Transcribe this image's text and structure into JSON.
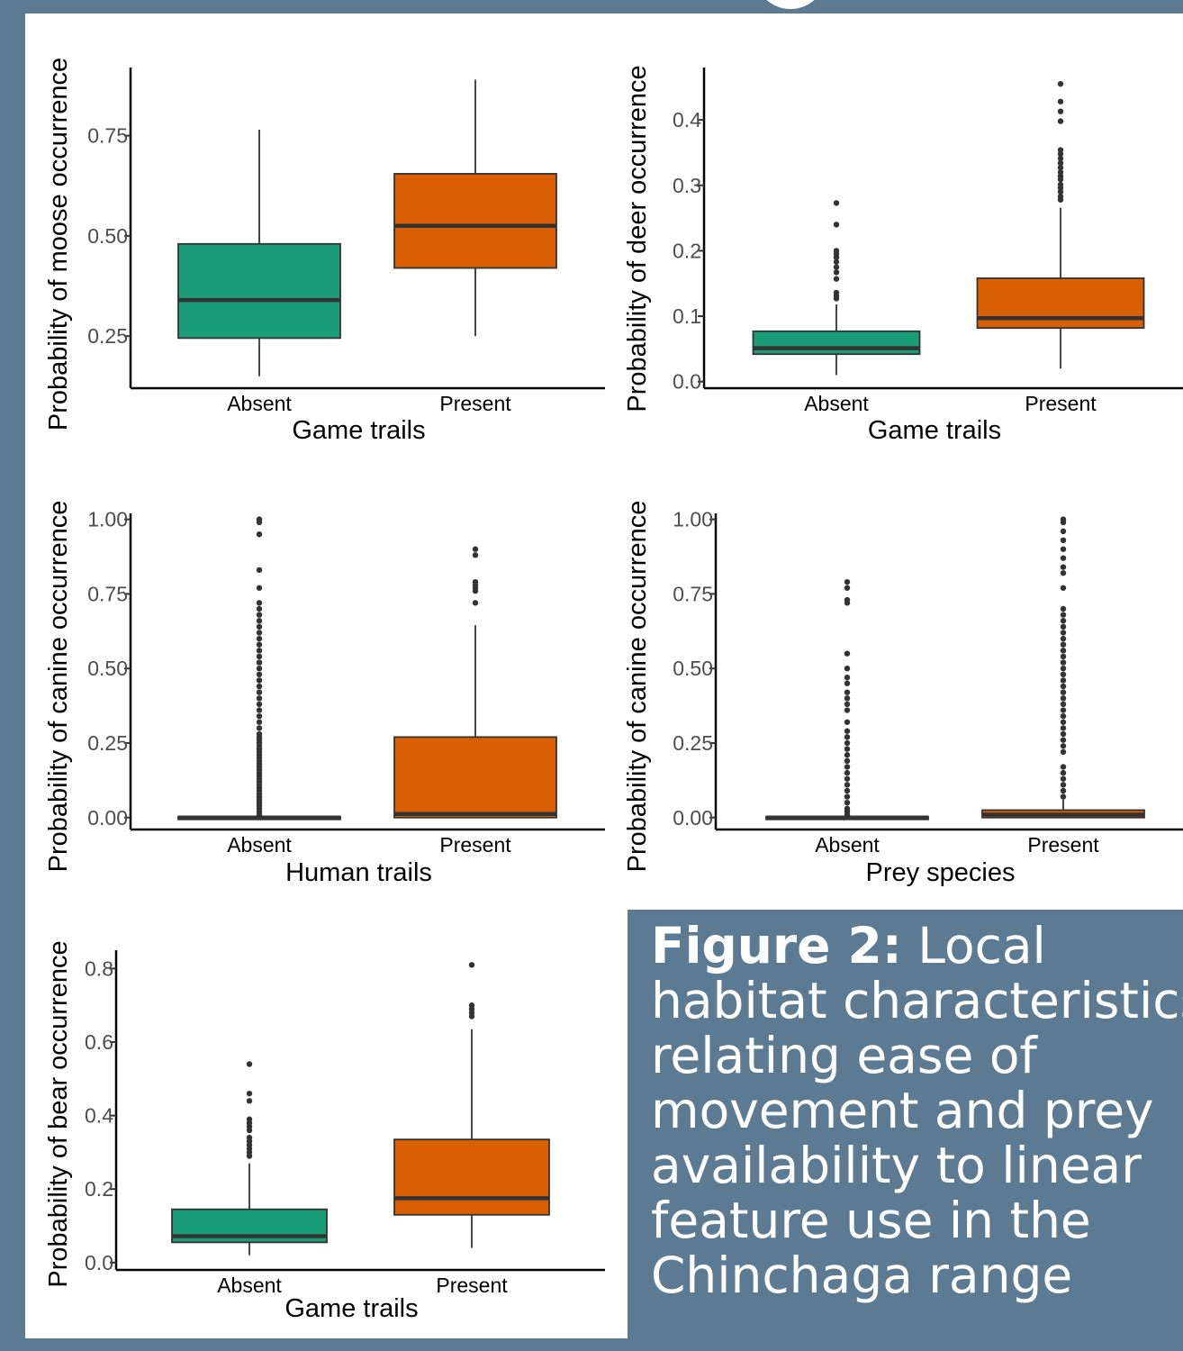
{
  "colors": {
    "absent": "#1b9e77",
    "present": "#d95f02",
    "background": "#5d7a93",
    "median": "#333333",
    "outlier": "#333333"
  },
  "caption": {
    "label": "Figure 2:",
    "text": " Local\nhabitat characteristics\nrelating ease of\nmovement and prey\navailability to linear\nfeature use in the\nChinchaga range"
  },
  "chart_data": [
    {
      "type": "box",
      "xlabel": "Game trails",
      "ylabel": "Probability of moose occurrence",
      "categories": [
        "Absent",
        "Present"
      ],
      "ylim": [
        0.12,
        0.92
      ],
      "yticks": [
        0.25,
        0.5,
        0.75
      ],
      "ytick_labels": [
        "0.25",
        "0.50",
        "0.75"
      ],
      "boxes": [
        {
          "min": 0.15,
          "q1": 0.245,
          "median": 0.34,
          "q3": 0.48,
          "max": 0.765,
          "outliers": []
        },
        {
          "min": 0.25,
          "q1": 0.42,
          "median": 0.525,
          "q3": 0.655,
          "max": 0.89,
          "outliers": []
        }
      ]
    },
    {
      "type": "box",
      "xlabel": "Game trails",
      "ylabel": "Probability of deer occurrence",
      "categories": [
        "Absent",
        "Present"
      ],
      "ylim": [
        -0.01,
        0.48
      ],
      "yticks": [
        0.0,
        0.1,
        0.2,
        0.3,
        0.4
      ],
      "ytick_labels": [
        "0.0",
        "0.1",
        "0.2",
        "0.3",
        "0.4"
      ],
      "boxes": [
        {
          "min": 0.01,
          "q1": 0.042,
          "median": 0.051,
          "q3": 0.077,
          "max": 0.118,
          "outliers": [
            0.127,
            0.131,
            0.136,
            0.157,
            0.167,
            0.175,
            0.183,
            0.19,
            0.195,
            0.2,
            0.24,
            0.273
          ]
        },
        {
          "min": 0.02,
          "q1": 0.082,
          "median": 0.097,
          "q3": 0.158,
          "max": 0.266,
          "outliers": [
            0.278,
            0.283,
            0.29,
            0.296,
            0.301,
            0.309,
            0.314,
            0.32,
            0.327,
            0.334,
            0.341,
            0.348,
            0.354,
            0.398,
            0.413,
            0.428,
            0.455
          ]
        }
      ]
    },
    {
      "type": "box",
      "xlabel": "Human trails",
      "ylabel": "Probability of canine occurrence",
      "categories": [
        "Absent",
        "Present"
      ],
      "ylim": [
        -0.04,
        1.02
      ],
      "yticks": [
        0.0,
        0.25,
        0.5,
        0.75,
        1.0
      ],
      "ytick_labels": [
        "0.00",
        "0.25",
        "0.50",
        "0.75",
        "1.00"
      ],
      "boxes": [
        {
          "min": 0.0,
          "q1": 0.0,
          "median": 0.0,
          "q3": 0.003,
          "max": 0.005,
          "outliers": [
            0.01,
            0.02,
            0.03,
            0.04,
            0.05,
            0.06,
            0.07,
            0.08,
            0.09,
            0.1,
            0.11,
            0.12,
            0.13,
            0.14,
            0.15,
            0.16,
            0.17,
            0.18,
            0.19,
            0.2,
            0.21,
            0.22,
            0.23,
            0.24,
            0.25,
            0.26,
            0.27,
            0.28,
            0.3,
            0.32,
            0.34,
            0.36,
            0.38,
            0.4,
            0.42,
            0.44,
            0.46,
            0.48,
            0.5,
            0.52,
            0.54,
            0.56,
            0.58,
            0.6,
            0.62,
            0.64,
            0.66,
            0.68,
            0.7,
            0.72,
            0.77,
            0.83,
            0.95,
            0.99,
            1.0
          ]
        },
        {
          "min": 0.0,
          "q1": 0.0,
          "median": 0.012,
          "q3": 0.27,
          "max": 0.645,
          "outliers": [
            0.72,
            0.76,
            0.77,
            0.78,
            0.79,
            0.88,
            0.9
          ]
        }
      ]
    },
    {
      "type": "box",
      "xlabel": "Prey species",
      "ylabel": "Probability of canine occurrence",
      "categories": [
        "Absent",
        "Present"
      ],
      "ylim": [
        -0.04,
        1.02
      ],
      "yticks": [
        0.0,
        0.25,
        0.5,
        0.75,
        1.0
      ],
      "ytick_labels": [
        "0.00",
        "0.25",
        "0.50",
        "0.75",
        "1.00"
      ],
      "boxes": [
        {
          "min": 0.0,
          "q1": 0.0,
          "median": 0.0,
          "q3": 0.003,
          "max": 0.005,
          "outliers": [
            0.01,
            0.02,
            0.03,
            0.05,
            0.07,
            0.09,
            0.11,
            0.13,
            0.15,
            0.17,
            0.19,
            0.21,
            0.23,
            0.25,
            0.27,
            0.29,
            0.32,
            0.36,
            0.38,
            0.4,
            0.42,
            0.45,
            0.47,
            0.5,
            0.55,
            0.72,
            0.73,
            0.77,
            0.79
          ]
        },
        {
          "min": 0.0,
          "q1": 0.0,
          "median": 0.01,
          "q3": 0.025,
          "max": 0.06,
          "outliers": [
            0.07,
            0.09,
            0.11,
            0.13,
            0.15,
            0.17,
            0.22,
            0.24,
            0.26,
            0.28,
            0.3,
            0.32,
            0.34,
            0.36,
            0.38,
            0.4,
            0.42,
            0.44,
            0.46,
            0.48,
            0.5,
            0.52,
            0.54,
            0.56,
            0.58,
            0.6,
            0.62,
            0.64,
            0.66,
            0.68,
            0.7,
            0.77,
            0.82,
            0.84,
            0.87,
            0.9,
            0.93,
            0.96,
            0.99,
            1.0
          ]
        }
      ]
    },
    {
      "type": "box",
      "xlabel": "Game trails",
      "ylabel": "Probability of bear occurrence",
      "categories": [
        "Absent",
        "Present"
      ],
      "ylim": [
        -0.02,
        0.85
      ],
      "yticks": [
        0.0,
        0.2,
        0.4,
        0.6,
        0.8
      ],
      "ytick_labels": [
        "0.0",
        "0.2",
        "0.4",
        "0.6",
        "0.8"
      ],
      "boxes": [
        {
          "min": 0.02,
          "q1": 0.055,
          "median": 0.072,
          "q3": 0.145,
          "max": 0.27,
          "outliers": [
            0.29,
            0.3,
            0.31,
            0.32,
            0.33,
            0.34,
            0.36,
            0.37,
            0.38,
            0.39,
            0.44,
            0.46,
            0.54
          ]
        },
        {
          "min": 0.04,
          "q1": 0.13,
          "median": 0.175,
          "q3": 0.335,
          "max": 0.635,
          "outliers": [
            0.67,
            0.68,
            0.69,
            0.7,
            0.81
          ]
        }
      ]
    }
  ]
}
